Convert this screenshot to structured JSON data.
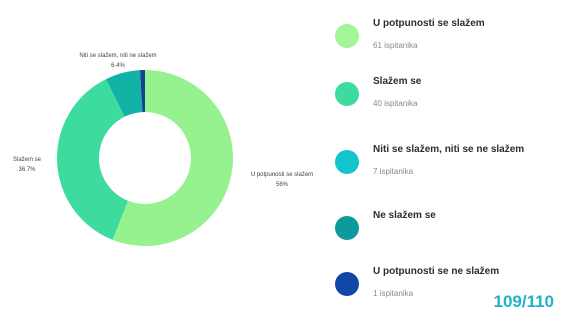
{
  "chart_data": {
    "type": "pie",
    "donut": true,
    "categories": [
      "U potpunosti se slažem",
      "Slažem se",
      "Niti se slažem, niti ne slažem",
      "Ne slažem se",
      "U potpunosti se ne slažem"
    ],
    "values": [
      56,
      36.7,
      6.4,
      0,
      0.9
    ],
    "slice_labels": [
      {
        "name": "U potpunosti se slažem",
        "value": "56%"
      },
      {
        "name": "Slažem se",
        "value": "36.7%"
      },
      {
        "name": "Niti se slažem, niti ne slažem",
        "value": "6.4%"
      }
    ],
    "colors": [
      "#96f18f",
      "#3ddc9e",
      "#12b3a6",
      "#0e8f93",
      "#1b3f8f"
    ]
  },
  "legend": [
    {
      "label": "U potpunosti se slažem",
      "count": "61 ispitanika",
      "color": "#a4f59a"
    },
    {
      "label": "Slažem se",
      "count": "40  ispitanika",
      "color": "#3ddc9e"
    },
    {
      "label": "Niti se  slažem, niti se ne slažem",
      "count": "7 ispitanika",
      "color": "#12c4cf"
    },
    {
      "label": "Ne slažem se",
      "count": "",
      "color": "#0e9a9c"
    },
    {
      "label": "U potpunosti se ne slažem",
      "count": "1 ispitanika",
      "color": "#1347a6"
    }
  ],
  "page_number": "109/110"
}
